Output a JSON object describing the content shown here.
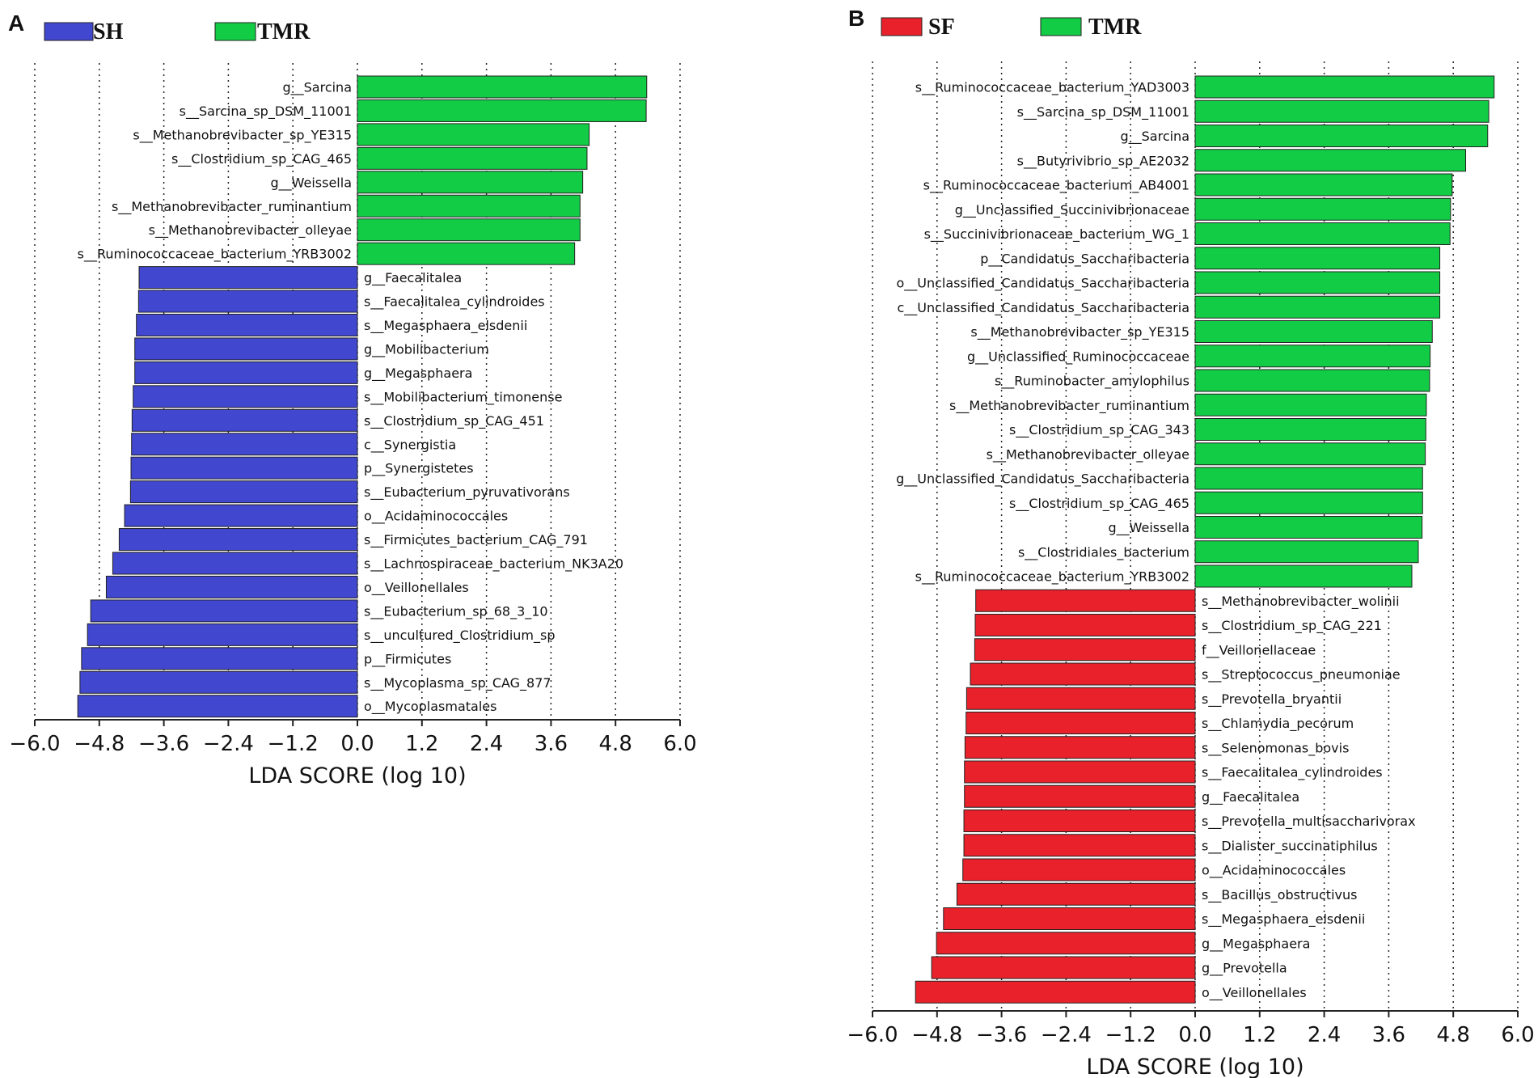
{
  "chart_data": [
    {
      "panel": "A",
      "type": "bar",
      "orientation": "horizontal",
      "xlabel": "LDA SCORE (log 10)",
      "xlim": [
        -6.0,
        6.0
      ],
      "xticks": [
        "−6.0",
        "−4.8",
        "−3.6",
        "−2.4",
        "−1.2",
        "0.0",
        "1.2",
        "2.4",
        "3.6",
        "4.8",
        "6.0"
      ],
      "legend": [
        {
          "name": "SH",
          "color": "#4147cf"
        },
        {
          "name": "TMR",
          "color": "#11cc44"
        }
      ],
      "bars": [
        {
          "label": "g__Sarcina",
          "value": 5.38,
          "group": "TMR"
        },
        {
          "label": "s__Sarcina_sp_DSM_11001",
          "value": 5.37,
          "group": "TMR"
        },
        {
          "label": "s__Methanobrevibacter_sp_YE315",
          "value": 4.31,
          "group": "TMR"
        },
        {
          "label": "s__Clostridium_sp_CAG_465",
          "value": 4.27,
          "group": "TMR"
        },
        {
          "label": "g__Weissella",
          "value": 4.19,
          "group": "TMR"
        },
        {
          "label": "s__Methanobrevibacter_ruminantium",
          "value": 4.14,
          "group": "TMR"
        },
        {
          "label": "s__Methanobrevibacter_olleyae",
          "value": 4.14,
          "group": "TMR"
        },
        {
          "label": "s__Ruminococcaceae_bacterium_YRB3002",
          "value": 4.04,
          "group": "TMR"
        },
        {
          "label": "g__Faecalitalea",
          "value": -4.06,
          "group": "SH"
        },
        {
          "label": "s__Faecalitalea_cylindroides",
          "value": -4.07,
          "group": "SH"
        },
        {
          "label": "s__Megasphaera_elsdenii",
          "value": -4.11,
          "group": "SH"
        },
        {
          "label": "g__Mobilibacterium",
          "value": -4.14,
          "group": "SH"
        },
        {
          "label": "g__Megasphaera",
          "value": -4.14,
          "group": "SH"
        },
        {
          "label": "s__Mobilibacterium_timonense",
          "value": -4.17,
          "group": "SH"
        },
        {
          "label": "s__Clostridium_sp_CAG_451",
          "value": -4.19,
          "group": "SH"
        },
        {
          "label": "c__Synergistia",
          "value": -4.2,
          "group": "SH"
        },
        {
          "label": "p__Synergistetes",
          "value": -4.21,
          "group": "SH"
        },
        {
          "label": "s__Eubacterium_pyruvativorans",
          "value": -4.22,
          "group": "SH"
        },
        {
          "label": "o__Acidaminococcales",
          "value": -4.33,
          "group": "SH"
        },
        {
          "label": "s__Firmicutes_bacterium_CAG_791",
          "value": -4.43,
          "group": "SH"
        },
        {
          "label": "s__Lachnospiraceae_bacterium_NK3A20",
          "value": -4.55,
          "group": "SH"
        },
        {
          "label": "o__Veillonellales",
          "value": -4.67,
          "group": "SH"
        },
        {
          "label": "s__Eubacterium_sp_68_3_10",
          "value": -4.96,
          "group": "SH"
        },
        {
          "label": "s__uncultured_Clostridium_sp",
          "value": -5.02,
          "group": "SH"
        },
        {
          "label": "p__Firmicutes",
          "value": -5.13,
          "group": "SH"
        },
        {
          "label": "s__Mycoplasma_sp_CAG_877",
          "value": -5.16,
          "group": "SH"
        },
        {
          "label": "o__Mycoplasmatales",
          "value": -5.2,
          "group": "SH"
        }
      ]
    },
    {
      "panel": "B",
      "type": "bar",
      "orientation": "horizontal",
      "xlabel": "LDA SCORE (log 10)",
      "xlim": [
        -6.0,
        6.0
      ],
      "xticks": [
        "−6.0",
        "−4.8",
        "−3.6",
        "−2.4",
        "−1.2",
        "0.0",
        "1.2",
        "2.4",
        "3.6",
        "4.8",
        "6.0"
      ],
      "legend": [
        {
          "name": "SF",
          "color": "#e8212a"
        },
        {
          "name": "TMR",
          "color": "#11cc44"
        }
      ],
      "bars": [
        {
          "label": "s__Ruminococcaceae_bacterium_YAD3003",
          "value": 5.56,
          "group": "TMR"
        },
        {
          "label": "s__Sarcina_sp_DSM_11001",
          "value": 5.46,
          "group": "TMR"
        },
        {
          "label": "g__Sarcina",
          "value": 5.44,
          "group": "TMR"
        },
        {
          "label": "s__Butyrivibrio_sp_AE2032",
          "value": 5.03,
          "group": "TMR"
        },
        {
          "label": "s__Ruminococcaceae_bacterium_AB4001",
          "value": 4.78,
          "group": "TMR"
        },
        {
          "label": "g__Unclassified_Succinivibrionaceae",
          "value": 4.75,
          "group": "TMR"
        },
        {
          "label": "s__Succinivibrionaceae_bacterium_WG_1",
          "value": 4.74,
          "group": "TMR"
        },
        {
          "label": "p__Candidatus_Saccharibacteria",
          "value": 4.55,
          "group": "TMR"
        },
        {
          "label": "o__Unclassified_Candidatus_Saccharibacteria",
          "value": 4.55,
          "group": "TMR"
        },
        {
          "label": "c__Unclassified_Candidatus_Saccharibacteria",
          "value": 4.55,
          "group": "TMR"
        },
        {
          "label": "s__Methanobrevibacter_sp_YE315",
          "value": 4.41,
          "group": "TMR"
        },
        {
          "label": "g__Unclassified_Ruminococcaceae",
          "value": 4.37,
          "group": "TMR"
        },
        {
          "label": "s__Ruminobacter_amylophilus",
          "value": 4.36,
          "group": "TMR"
        },
        {
          "label": "s__Methanobrevibacter_ruminantium",
          "value": 4.3,
          "group": "TMR"
        },
        {
          "label": "s__Clostridium_sp_CAG_343",
          "value": 4.29,
          "group": "TMR"
        },
        {
          "label": "s__Methanobrevibacter_olleyae",
          "value": 4.28,
          "group": "TMR"
        },
        {
          "label": "g__Unclassified_Candidatus_Saccharibacteria",
          "value": 4.23,
          "group": "TMR"
        },
        {
          "label": "s__Clostridium_sp_CAG_465",
          "value": 4.23,
          "group": "TMR"
        },
        {
          "label": "g__Weissella",
          "value": 4.22,
          "group": "TMR"
        },
        {
          "label": "s__Clostridiales_bacterium",
          "value": 4.15,
          "group": "TMR"
        },
        {
          "label": "s__Ruminococcaceae_bacterium_YRB3002",
          "value": 4.03,
          "group": "TMR"
        },
        {
          "label": "s__Methanobrevibacter_wolinii",
          "value": -4.08,
          "group": "SF"
        },
        {
          "label": "s__Clostridium_sp_CAG_221",
          "value": -4.09,
          "group": "SF"
        },
        {
          "label": "f__Veillonellaceae",
          "value": -4.1,
          "group": "SF"
        },
        {
          "label": "s__Streptococcus_pneumoniae",
          "value": -4.18,
          "group": "SF"
        },
        {
          "label": "s__Prevotella_bryantii",
          "value": -4.25,
          "group": "SF"
        },
        {
          "label": "s__Chlamydia_pecorum",
          "value": -4.26,
          "group": "SF"
        },
        {
          "label": "s__Selenomonas_bovis",
          "value": -4.28,
          "group": "SF"
        },
        {
          "label": "s__Faecalitalea_cylindroides",
          "value": -4.29,
          "group": "SF"
        },
        {
          "label": "g__Faecalitalea",
          "value": -4.29,
          "group": "SF"
        },
        {
          "label": "s__Prevotella_multisaccharivorax",
          "value": -4.3,
          "group": "SF"
        },
        {
          "label": "s__Dialister_succinatiphilus",
          "value": -4.3,
          "group": "SF"
        },
        {
          "label": "o__Acidaminococcales",
          "value": -4.32,
          "group": "SF"
        },
        {
          "label": "s__Bacillus_obstructivus",
          "value": -4.43,
          "group": "SF"
        },
        {
          "label": "s__Megasphaera_elsdenii",
          "value": -4.68,
          "group": "SF"
        },
        {
          "label": "g__Megasphaera",
          "value": -4.81,
          "group": "SF"
        },
        {
          "label": "g__Prevotella",
          "value": -4.9,
          "group": "SF"
        },
        {
          "label": "o__Veillonellales",
          "value": -5.2,
          "group": "SF"
        }
      ]
    }
  ]
}
